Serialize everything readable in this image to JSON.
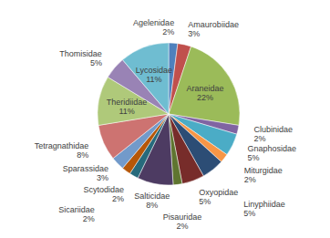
{
  "chart_data": {
    "type": "pie",
    "categories": [
      "Agelenidae",
      "Amaurobiidae",
      "Araneidae",
      "Clubinidae",
      "Gnaphosidae",
      "Miturgidae",
      "Linyphiidae",
      "Oxyopidae",
      "Pisauridae",
      "Salticidae",
      "Scytodidae",
      "Sicariidae",
      "Sparassidae",
      "Tetragnathidae",
      "Theridiidae",
      "Thomisidae",
      "Lycosidae"
    ],
    "values": [
      2,
      3,
      22,
      2,
      5,
      2,
      5,
      5,
      2,
      8,
      2,
      2,
      3,
      8,
      11,
      5,
      11
    ],
    "value_labels": [
      "2%",
      "3%",
      "22%",
      "2%",
      "5%",
      "2%",
      "5%",
      "5%",
      "2%",
      "8%",
      "2%",
      "2%",
      "3%",
      "8%",
      "11%",
      "5%",
      "11%"
    ],
    "colors": [
      "#4f81bd",
      "#c0504d",
      "#9bbb59",
      "#8064a2",
      "#4bacc6",
      "#f79646",
      "#2c4d75",
      "#772c2a",
      "#5f7530",
      "#4d3b62",
      "#276a7c",
      "#b65708",
      "#729aca",
      "#cd7371",
      "#afc97a",
      "#9983b5",
      "#6fbdd1"
    ],
    "data_labels": true
  }
}
